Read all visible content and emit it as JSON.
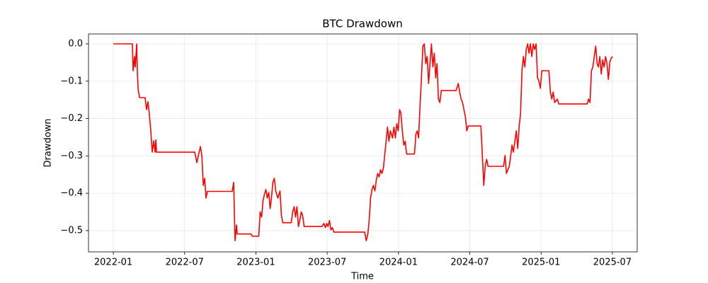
{
  "chart_data": {
    "type": "line",
    "title": "BTC Drawdown",
    "x_label": "Time",
    "y_label": "Drawdown",
    "color": "#ff0000",
    "grid": true,
    "xlim": [
      2021.826,
      2025.674
    ],
    "ylim": [
      -0.557,
      0.0265
    ],
    "xticks": [
      {
        "value": 2022.0,
        "label": "2022-01"
      },
      {
        "value": 2022.5,
        "label": "2022-07"
      },
      {
        "value": 2023.0,
        "label": "2023-01"
      },
      {
        "value": 2023.5,
        "label": "2023-07"
      },
      {
        "value": 2024.0,
        "label": "2024-01"
      },
      {
        "value": 2024.5,
        "label": "2024-07"
      },
      {
        "value": 2025.0,
        "label": "2025-01"
      },
      {
        "value": 2025.5,
        "label": "2025-07"
      }
    ],
    "yticks": [
      {
        "value": 0,
        "label": "0.0"
      },
      {
        "value": -0.1,
        "label": "−0.1"
      },
      {
        "value": -0.2,
        "label": "−0.2"
      },
      {
        "value": -0.3,
        "label": "−0.3"
      },
      {
        "value": -0.4,
        "label": "−0.4"
      },
      {
        "value": -0.5,
        "label": "−0.5"
      }
    ],
    "x": [
      2022.0,
      2022.134,
      2022.139,
      2022.149,
      2022.154,
      2022.164,
      2022.169,
      2022.174,
      2022.184,
      2022.223,
      2022.233,
      2022.243,
      2022.253,
      2022.263,
      2022.273,
      2022.283,
      2022.293,
      2022.298,
      2022.303,
      2022.571,
      2022.586,
      2022.596,
      2022.611,
      2022.621,
      2022.631,
      2022.641,
      2022.65,
      2022.66,
      2022.834,
      2022.844,
      2022.849,
      2022.854,
      2022.864,
      2022.869,
      2022.965,
      2022.975,
      2023.02,
      2023.03,
      2023.04,
      2023.05,
      2023.06,
      2023.07,
      2023.08,
      2023.09,
      2023.1,
      2023.109,
      2023.119,
      2023.129,
      2023.139,
      2023.154,
      2023.169,
      2023.179,
      2023.189,
      2023.248,
      2023.258,
      2023.268,
      2023.278,
      2023.288,
      2023.298,
      2023.308,
      2023.318,
      2023.328,
      2023.338,
      2023.462,
      2023.477,
      2023.487,
      2023.497,
      2023.506,
      2023.516,
      2023.526,
      2023.536,
      2023.546,
      2023.763,
      2023.774,
      2023.785,
      2023.795,
      2023.804,
      2023.814,
      2023.824,
      2023.834,
      2023.844,
      2023.854,
      2023.864,
      2023.874,
      2023.884,
      2023.894,
      2023.903,
      2023.913,
      2023.923,
      2023.933,
      2023.943,
      2023.958,
      2023.968,
      2023.978,
      2023.988,
      2023.998,
      2024.008,
      2024.017,
      2024.027,
      2024.037,
      2024.047,
      2024.057,
      2024.112,
      2024.122,
      2024.131,
      2024.141,
      2024.151,
      2024.161,
      2024.171,
      2024.181,
      2024.191,
      2024.201,
      2024.211,
      2024.221,
      2024.231,
      2024.241,
      2024.251,
      2024.261,
      2024.27,
      2024.28,
      2024.29,
      2024.3,
      2024.404,
      2024.419,
      2024.429,
      2024.439,
      2024.449,
      2024.459,
      2024.469,
      2024.479,
      2024.489,
      2024.578,
      2024.588,
      2024.598,
      2024.608,
      2024.618,
      2024.628,
      2024.737,
      2024.747,
      2024.757,
      2024.767,
      2024.777,
      2024.787,
      2024.796,
      2024.806,
      2024.816,
      2024.826,
      2024.836,
      2024.846,
      2024.856,
      2024.866,
      2024.876,
      2024.886,
      2024.896,
      2024.906,
      2024.915,
      2024.925,
      2024.935,
      2024.945,
      2024.955,
      2024.965,
      2024.975,
      2024.985,
      2024.995,
      2025.005,
      2025.055,
      2025.065,
      2025.075,
      2025.085,
      2025.095,
      2025.114,
      2025.124,
      2025.323,
      2025.333,
      2025.343,
      2025.353,
      2025.363,
      2025.373,
      2025.383,
      2025.393,
      2025.402,
      2025.412,
      2025.422,
      2025.432,
      2025.442,
      2025.452,
      2025.462,
      2025.472,
      2025.482,
      2025.492,
      2025.501
    ],
    "values": [
      0,
      0,
      -0.072,
      -0.034,
      -0.062,
      0,
      -0.08,
      -0.12,
      -0.144,
      -0.144,
      -0.176,
      -0.155,
      -0.19,
      -0.233,
      -0.29,
      -0.26,
      -0.29,
      -0.257,
      -0.29,
      -0.29,
      -0.318,
      -0.3,
      -0.275,
      -0.3,
      -0.379,
      -0.36,
      -0.413,
      -0.395,
      -0.395,
      -0.371,
      -0.45,
      -0.527,
      -0.485,
      -0.509,
      -0.509,
      -0.515,
      -0.515,
      -0.45,
      -0.464,
      -0.42,
      -0.403,
      -0.39,
      -0.413,
      -0.398,
      -0.441,
      -0.413,
      -0.371,
      -0.36,
      -0.394,
      -0.413,
      -0.394,
      -0.46,
      -0.479,
      -0.479,
      -0.45,
      -0.436,
      -0.464,
      -0.436,
      -0.489,
      -0.473,
      -0.45,
      -0.46,
      -0.489,
      -0.489,
      -0.481,
      -0.492,
      -0.481,
      -0.489,
      -0.473,
      -0.498,
      -0.492,
      -0.504,
      -0.504,
      -0.527,
      -0.509,
      -0.47,
      -0.413,
      -0.39,
      -0.379,
      -0.394,
      -0.366,
      -0.347,
      -0.356,
      -0.337,
      -0.347,
      -0.333,
      -0.299,
      -0.261,
      -0.223,
      -0.261,
      -0.233,
      -0.252,
      -0.223,
      -0.252,
      -0.214,
      -0.233,
      -0.176,
      -0.186,
      -0.233,
      -0.271,
      -0.261,
      -0.295,
      -0.295,
      -0.242,
      -0.233,
      -0.252,
      -0.167,
      -0.091,
      -0.006,
      0,
      -0.053,
      -0.034,
      -0.106,
      -0.053,
      0,
      -0.062,
      -0.025,
      -0.091,
      -0.053,
      -0.148,
      -0.157,
      -0.125,
      -0.125,
      -0.106,
      -0.129,
      -0.148,
      -0.157,
      -0.176,
      -0.195,
      -0.233,
      -0.22,
      -0.22,
      -0.299,
      -0.379,
      -0.328,
      -0.309,
      -0.328,
      -0.328,
      -0.299,
      -0.347,
      -0.337,
      -0.328,
      -0.299,
      -0.271,
      -0.29,
      -0.261,
      -0.233,
      -0.28,
      -0.223,
      -0.186,
      -0.072,
      -0.034,
      -0.062,
      -0.015,
      0,
      -0.025,
      0,
      -0.034,
      0,
      -0.015,
      0,
      -0.091,
      -0.1,
      -0.119,
      -0.072,
      -0.072,
      -0.129,
      -0.148,
      -0.129,
      -0.157,
      -0.148,
      -0.161,
      -0.161,
      -0.148,
      -0.157,
      -0.072,
      -0.062,
      -0.034,
      -0.006,
      -0.053,
      -0.062,
      -0.034,
      -0.081,
      -0.043,
      -0.062,
      -0.034,
      -0.053,
      -0.095,
      -0.049,
      -0.038,
      -0.034
    ]
  }
}
